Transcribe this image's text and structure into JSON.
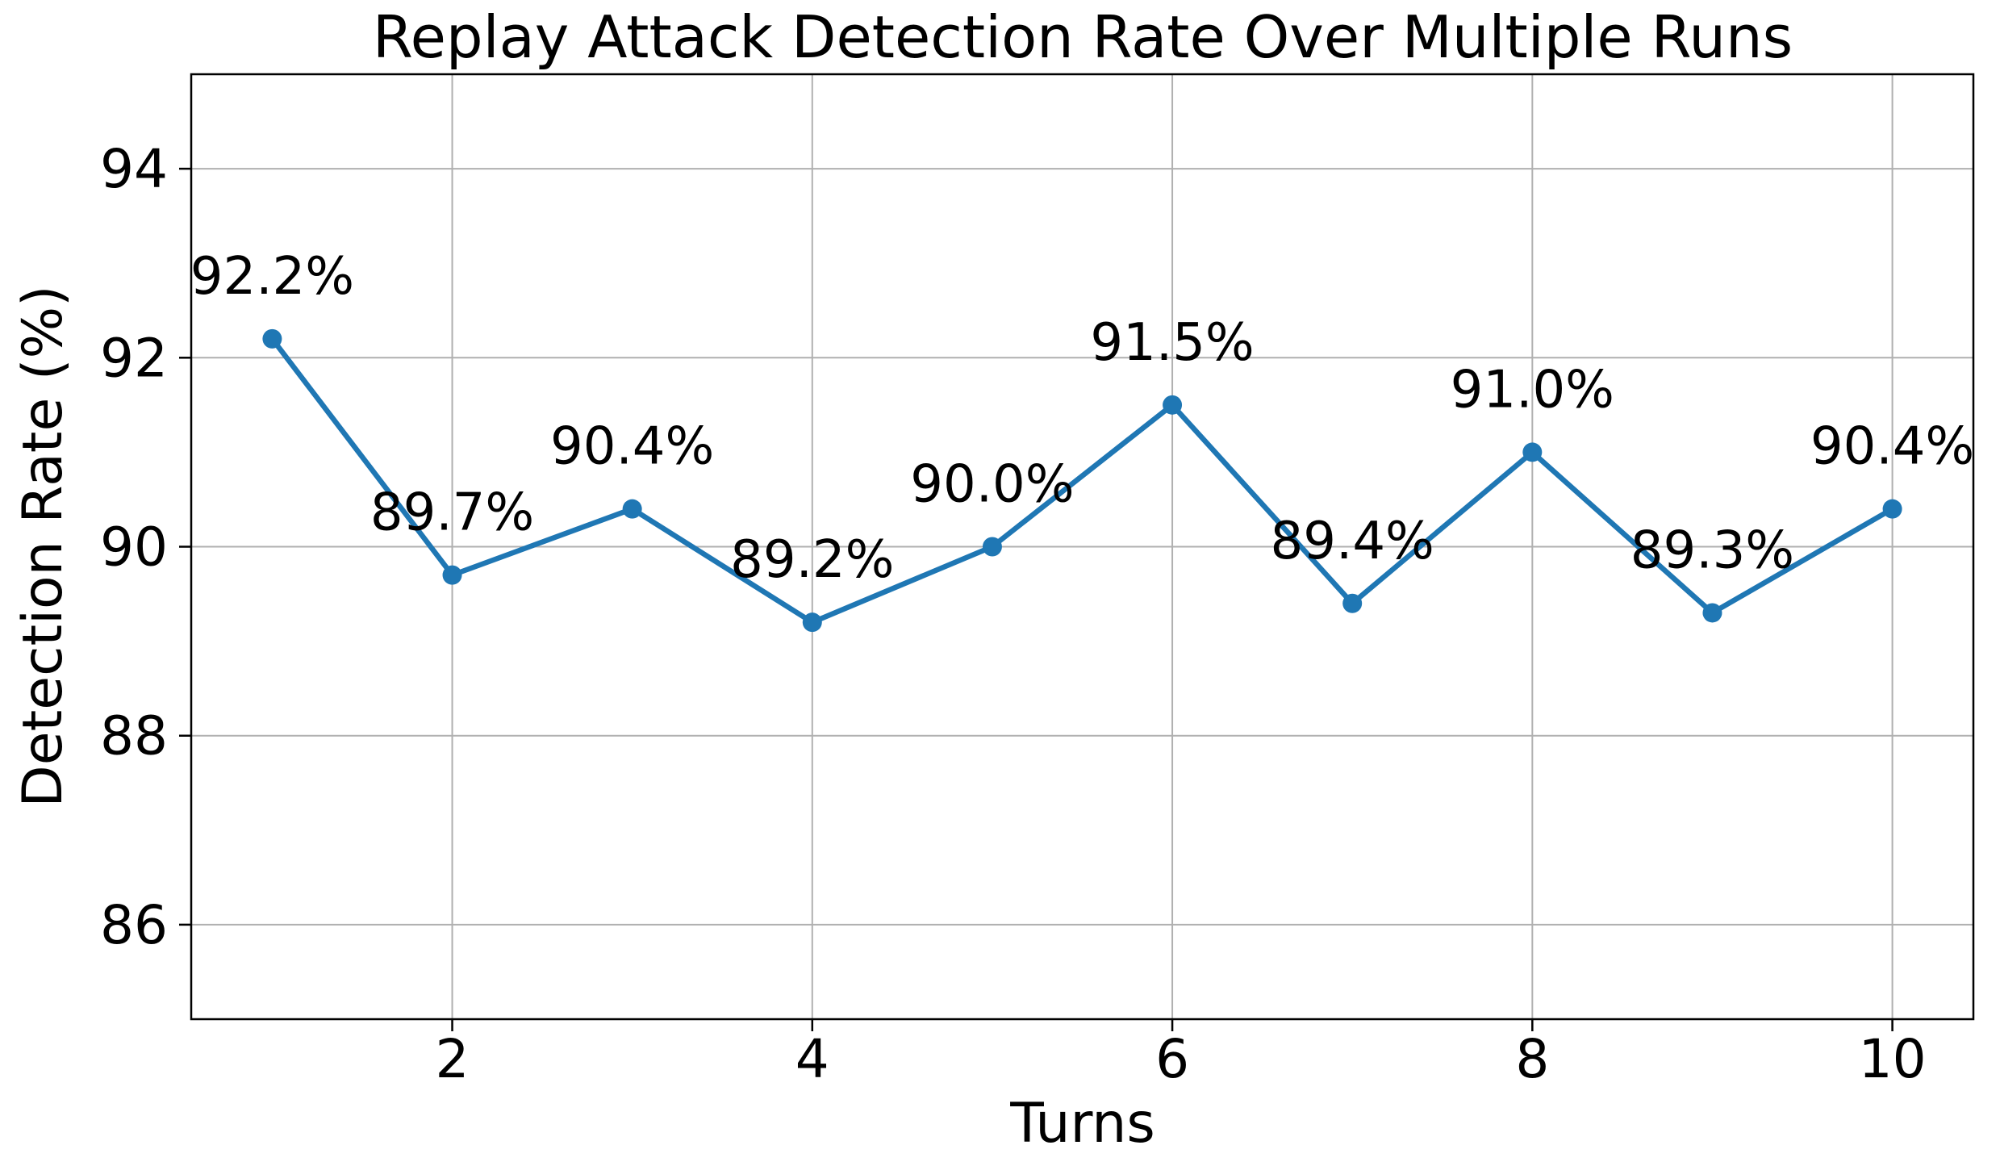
{
  "chart_data": {
    "type": "line",
    "title": "Replay Attack Detection Rate Over Multiple Runs",
    "xlabel": "Turns",
    "ylabel": "Detection Rate (%)",
    "x": [
      1,
      2,
      3,
      4,
      5,
      6,
      7,
      8,
      9,
      10
    ],
    "y": [
      92.2,
      89.7,
      90.4,
      89.2,
      90.0,
      91.5,
      89.4,
      91.0,
      89.3,
      90.4
    ],
    "point_labels": [
      "92.2%",
      "89.7%",
      "90.4%",
      "89.2%",
      "90.0%",
      "91.5%",
      "89.4%",
      "91.0%",
      "89.3%",
      "90.4%"
    ],
    "xticks": [
      2,
      4,
      6,
      8,
      10
    ],
    "yticks": [
      86,
      88,
      90,
      92,
      94
    ],
    "xtick_labels": [
      "2",
      "4",
      "6",
      "8",
      "10"
    ],
    "ytick_labels": [
      "86",
      "88",
      "90",
      "92",
      "94"
    ],
    "xlim": [
      0.55,
      10.45
    ],
    "ylim": [
      85,
      95
    ],
    "grid": true,
    "marker": "circle",
    "line_color": "#1f77b4",
    "marker_color": "#1f77b4",
    "grid_color": "#b0b0b0",
    "spine_color": "#000000",
    "text_color": "#000000",
    "background_color": "#ffffff"
  }
}
